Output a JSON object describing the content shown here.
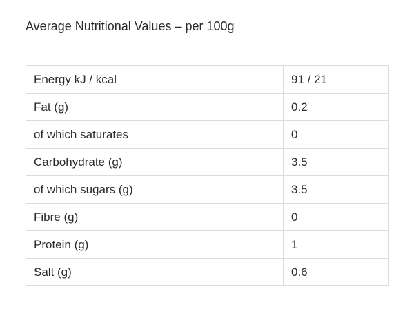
{
  "heading": "Average Nutritional Values – per 100g",
  "table": {
    "rows": [
      {
        "name": "Energy kJ / kcal",
        "value": "91 / 21"
      },
      {
        "name": "Fat (g)",
        "value": "0.2"
      },
      {
        "name": "of which saturates",
        "value": "0"
      },
      {
        "name": "Carbohydrate (g)",
        "value": "3.5"
      },
      {
        "name": "of which sugars (g)",
        "value": "3.5"
      },
      {
        "name": "Fibre (g)",
        "value": "0"
      },
      {
        "name": "Protein (g)",
        "value": "1"
      },
      {
        "name": "Salt (g)",
        "value": "0.6"
      }
    ]
  }
}
